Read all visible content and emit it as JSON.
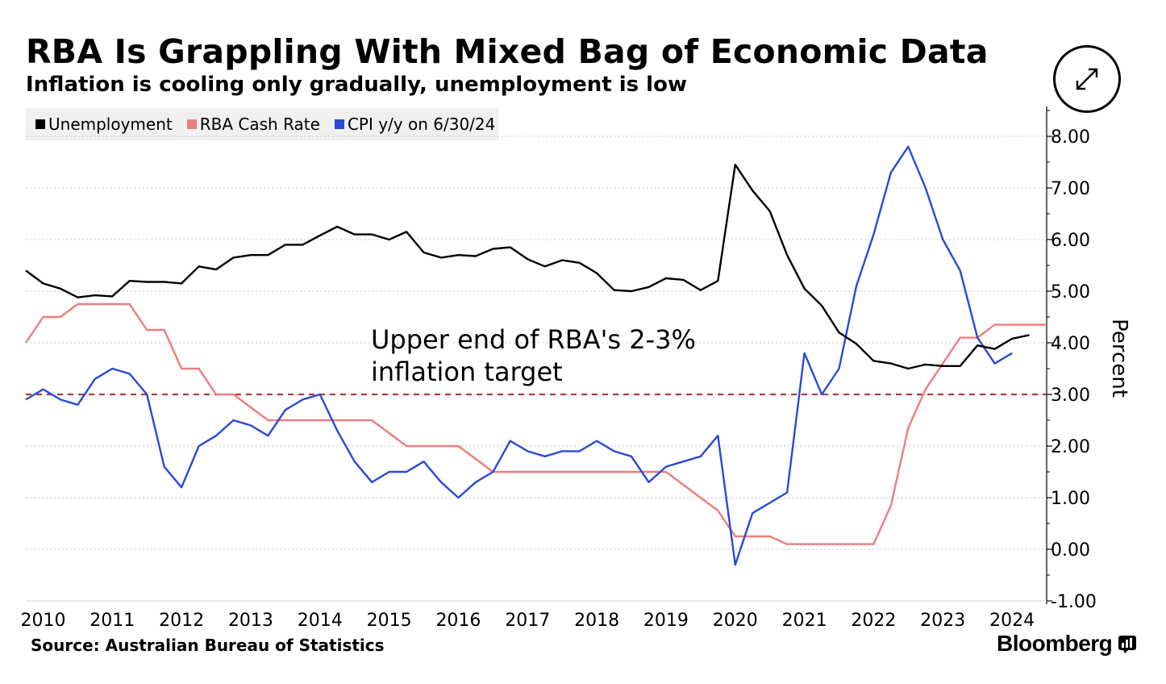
{
  "header": {
    "title": "RBA Is Grappling With Mixed Bag of Economic Data",
    "subtitle": "Inflation is cooling only gradually, unemployment is low"
  },
  "expand_icon": "expand-arrows-icon",
  "footer": {
    "source": "Source: Australian Bureau of Statistics",
    "brand": "Bloomberg"
  },
  "chart_data": {
    "type": "line",
    "title": "RBA Is Grappling With Mixed Bag of Economic Data",
    "subtitle": "Inflation is cooling only gradually, unemployment is low",
    "xlabel": "",
    "ylabel": "Percent",
    "xlim": [
      2010.0,
      2024.75
    ],
    "ylim": [
      -1.0,
      8.5
    ],
    "x_ticks": [
      "2010",
      "2011",
      "2012",
      "2013",
      "2014",
      "2015",
      "2016",
      "2017",
      "2018",
      "2019",
      "2020",
      "2021",
      "2022",
      "2023",
      "2024"
    ],
    "y_ticks": [
      "-1.00",
      "0.00",
      "1.00",
      "2.00",
      "3.00",
      "4.00",
      "5.00",
      "6.00",
      "7.00",
      "8.00"
    ],
    "y_axis_position": "right",
    "grid": true,
    "legend_position": "top-left",
    "reference_line": {
      "y": 3.0,
      "style": "dashed",
      "color": "#b03a48"
    },
    "annotation": [
      "Upper end of RBA's 2-3%",
      "inflation target"
    ],
    "series": [
      {
        "name": "Unemployment",
        "color": "#000000",
        "points": [
          [
            2010.0,
            5.4
          ],
          [
            2010.25,
            5.15
          ],
          [
            2010.5,
            5.05
          ],
          [
            2010.75,
            4.88
          ],
          [
            2011.0,
            4.92
          ],
          [
            2011.25,
            4.9
          ],
          [
            2011.5,
            5.2
          ],
          [
            2011.75,
            5.18
          ],
          [
            2012.0,
            5.18
          ],
          [
            2012.25,
            5.15
          ],
          [
            2012.5,
            5.48
          ],
          [
            2012.75,
            5.42
          ],
          [
            2013.0,
            5.65
          ],
          [
            2013.25,
            5.7
          ],
          [
            2013.5,
            5.7
          ],
          [
            2013.75,
            5.9
          ],
          [
            2014.0,
            5.9
          ],
          [
            2014.25,
            6.08
          ],
          [
            2014.5,
            6.25
          ],
          [
            2014.75,
            6.1
          ],
          [
            2015.0,
            6.1
          ],
          [
            2015.25,
            6.0
          ],
          [
            2015.5,
            6.15
          ],
          [
            2015.75,
            5.75
          ],
          [
            2016.0,
            5.65
          ],
          [
            2016.25,
            5.7
          ],
          [
            2016.5,
            5.68
          ],
          [
            2016.75,
            5.82
          ],
          [
            2017.0,
            5.85
          ],
          [
            2017.25,
            5.62
          ],
          [
            2017.5,
            5.48
          ],
          [
            2017.75,
            5.6
          ],
          [
            2018.0,
            5.55
          ],
          [
            2018.25,
            5.35
          ],
          [
            2018.5,
            5.02
          ],
          [
            2018.75,
            5.0
          ],
          [
            2019.0,
            5.08
          ],
          [
            2019.25,
            5.25
          ],
          [
            2019.5,
            5.22
          ],
          [
            2019.75,
            5.02
          ],
          [
            2020.0,
            5.2
          ],
          [
            2020.25,
            7.45
          ],
          [
            2020.5,
            6.95
          ],
          [
            2020.75,
            6.55
          ],
          [
            2021.0,
            5.7
          ],
          [
            2021.25,
            5.05
          ],
          [
            2021.5,
            4.72
          ],
          [
            2021.75,
            4.2
          ],
          [
            2022.0,
            3.98
          ],
          [
            2022.25,
            3.65
          ],
          [
            2022.5,
            3.6
          ],
          [
            2022.75,
            3.5
          ],
          [
            2023.0,
            3.58
          ],
          [
            2023.25,
            3.55
          ],
          [
            2023.5,
            3.55
          ],
          [
            2023.75,
            3.95
          ],
          [
            2024.0,
            3.88
          ],
          [
            2024.25,
            4.08
          ],
          [
            2024.5,
            4.15
          ]
        ]
      },
      {
        "name": "RBA Cash Rate",
        "color": "#ee7d7a",
        "points": [
          [
            2010.0,
            4.0
          ],
          [
            2010.25,
            4.5
          ],
          [
            2010.5,
            4.5
          ],
          [
            2010.75,
            4.75
          ],
          [
            2011.0,
            4.75
          ],
          [
            2011.25,
            4.75
          ],
          [
            2011.5,
            4.75
          ],
          [
            2011.75,
            4.25
          ],
          [
            2012.0,
            4.25
          ],
          [
            2012.25,
            3.5
          ],
          [
            2012.5,
            3.5
          ],
          [
            2012.75,
            3.0
          ],
          [
            2013.0,
            3.0
          ],
          [
            2013.25,
            2.75
          ],
          [
            2013.5,
            2.5
          ],
          [
            2013.75,
            2.5
          ],
          [
            2014.0,
            2.5
          ],
          [
            2014.25,
            2.5
          ],
          [
            2014.5,
            2.5
          ],
          [
            2014.75,
            2.5
          ],
          [
            2015.0,
            2.5
          ],
          [
            2015.25,
            2.25
          ],
          [
            2015.5,
            2.0
          ],
          [
            2015.75,
            2.0
          ],
          [
            2016.0,
            2.0
          ],
          [
            2016.25,
            2.0
          ],
          [
            2016.5,
            1.75
          ],
          [
            2016.75,
            1.5
          ],
          [
            2017.0,
            1.5
          ],
          [
            2017.25,
            1.5
          ],
          [
            2017.5,
            1.5
          ],
          [
            2017.75,
            1.5
          ],
          [
            2018.0,
            1.5
          ],
          [
            2018.25,
            1.5
          ],
          [
            2018.5,
            1.5
          ],
          [
            2018.75,
            1.5
          ],
          [
            2019.0,
            1.5
          ],
          [
            2019.25,
            1.5
          ],
          [
            2019.5,
            1.25
          ],
          [
            2019.75,
            1.0
          ],
          [
            2020.0,
            0.75
          ],
          [
            2020.25,
            0.25
          ],
          [
            2020.5,
            0.25
          ],
          [
            2020.75,
            0.25
          ],
          [
            2021.0,
            0.1
          ],
          [
            2021.25,
            0.1
          ],
          [
            2021.5,
            0.1
          ],
          [
            2021.75,
            0.1
          ],
          [
            2022.0,
            0.1
          ],
          [
            2022.25,
            0.1
          ],
          [
            2022.5,
            0.85
          ],
          [
            2022.75,
            2.35
          ],
          [
            2023.0,
            3.1
          ],
          [
            2023.25,
            3.6
          ],
          [
            2023.5,
            4.1
          ],
          [
            2023.75,
            4.1
          ],
          [
            2024.0,
            4.35
          ],
          [
            2024.25,
            4.35
          ],
          [
            2024.5,
            4.35
          ],
          [
            2024.75,
            4.35
          ]
        ]
      },
      {
        "name": "CPI y/y on 6/30/24",
        "color": "#2a49d6",
        "points": [
          [
            2010.0,
            2.9
          ],
          [
            2010.25,
            3.1
          ],
          [
            2010.5,
            2.9
          ],
          [
            2010.75,
            2.8
          ],
          [
            2011.0,
            3.3
          ],
          [
            2011.25,
            3.5
          ],
          [
            2011.5,
            3.4
          ],
          [
            2011.75,
            3.0
          ],
          [
            2012.0,
            1.6
          ],
          [
            2012.25,
            1.2
          ],
          [
            2012.5,
            2.0
          ],
          [
            2012.75,
            2.2
          ],
          [
            2013.0,
            2.5
          ],
          [
            2013.25,
            2.4
          ],
          [
            2013.5,
            2.2
          ],
          [
            2013.75,
            2.7
          ],
          [
            2014.0,
            2.9
          ],
          [
            2014.25,
            3.0
          ],
          [
            2014.5,
            2.3
          ],
          [
            2014.75,
            1.7
          ],
          [
            2015.0,
            1.3
          ],
          [
            2015.25,
            1.5
          ],
          [
            2015.5,
            1.5
          ],
          [
            2015.75,
            1.7
          ],
          [
            2016.0,
            1.3
          ],
          [
            2016.25,
            1.0
          ],
          [
            2016.5,
            1.3
          ],
          [
            2016.75,
            1.5
          ],
          [
            2017.0,
            2.1
          ],
          [
            2017.25,
            1.9
          ],
          [
            2017.5,
            1.8
          ],
          [
            2017.75,
            1.9
          ],
          [
            2018.0,
            1.9
          ],
          [
            2018.25,
            2.1
          ],
          [
            2018.5,
            1.9
          ],
          [
            2018.75,
            1.8
          ],
          [
            2019.0,
            1.3
          ],
          [
            2019.25,
            1.6
          ],
          [
            2019.5,
            1.7
          ],
          [
            2019.75,
            1.8
          ],
          [
            2020.0,
            2.2
          ],
          [
            2020.25,
            -0.3
          ],
          [
            2020.5,
            0.7
          ],
          [
            2020.75,
            0.9
          ],
          [
            2021.0,
            1.1
          ],
          [
            2021.25,
            3.8
          ],
          [
            2021.5,
            3.0
          ],
          [
            2021.75,
            3.5
          ],
          [
            2022.0,
            5.1
          ],
          [
            2022.25,
            6.1
          ],
          [
            2022.5,
            7.3
          ],
          [
            2022.75,
            7.8
          ],
          [
            2023.0,
            7.0
          ],
          [
            2023.25,
            6.0
          ],
          [
            2023.5,
            5.4
          ],
          [
            2023.75,
            4.1
          ],
          [
            2024.0,
            3.6
          ],
          [
            2024.25,
            3.8
          ]
        ]
      }
    ]
  }
}
